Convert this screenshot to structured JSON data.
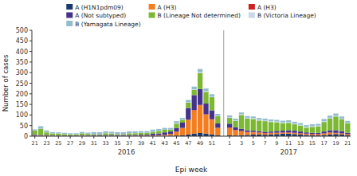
{
  "chart_data": {
    "type": "bar",
    "stacked": true,
    "grid": false,
    "xlabel": "Epi week",
    "ylabel": "Number of cases",
    "ylim": [
      0,
      500
    ],
    "yticks": [
      0,
      50,
      100,
      150,
      200,
      250,
      300,
      350,
      400,
      450,
      500
    ],
    "categories": [
      "21",
      null,
      "23",
      null,
      "25",
      null,
      "27",
      null,
      "29",
      null,
      "31",
      null,
      "33",
      null,
      "35",
      null,
      "37",
      null,
      "39",
      null,
      "41",
      null,
      "43",
      null,
      "45",
      null,
      "47",
      null,
      "49",
      null,
      "51",
      null,
      null,
      "1",
      null,
      "3",
      null,
      "5",
      null,
      "7",
      null,
      "9",
      null,
      "11",
      null,
      "13",
      null,
      "15",
      null,
      "17",
      null,
      "19",
      null,
      "21"
    ],
    "annotations": [
      {
        "text": "2016"
      },
      {
        "text": "2017"
      }
    ],
    "series": [
      {
        "name": "A (H1N1pdm09)",
        "color": "#1a3a6b",
        "values": [
          2,
          1,
          1,
          1,
          1,
          1,
          1,
          1,
          1,
          1,
          1,
          1,
          1,
          1,
          1,
          1,
          1,
          1,
          1,
          1,
          1,
          1,
          1,
          2,
          3,
          4,
          8,
          12,
          15,
          12,
          8,
          4,
          null,
          4,
          3,
          5,
          6,
          8,
          8,
          7,
          8,
          10,
          12,
          12,
          10,
          8,
          6,
          4,
          4,
          6,
          8,
          10,
          8,
          4
        ]
      },
      {
        "name": "A (H3)",
        "color": "#f47d20",
        "values": [
          3,
          2,
          2,
          1,
          1,
          1,
          1,
          1,
          2,
          1,
          1,
          1,
          1,
          1,
          1,
          1,
          1,
          1,
          2,
          2,
          3,
          4,
          5,
          8,
          18,
          35,
          70,
          110,
          130,
          90,
          70,
          35,
          null,
          35,
          25,
          18,
          12,
          10,
          8,
          6,
          6,
          5,
          4,
          4,
          4,
          4,
          4,
          4,
          4,
          6,
          8,
          4,
          4,
          4
        ]
      },
      {
        "name": "A (H3)",
        "color": "#cc2222",
        "values": [
          0,
          0,
          0,
          0,
          0,
          0,
          0,
          0,
          0,
          0,
          0,
          0,
          0,
          0,
          0,
          0,
          0,
          0,
          0,
          0,
          0,
          0,
          0,
          0,
          0,
          0,
          0,
          2,
          3,
          2,
          2,
          1,
          null,
          2,
          2,
          2,
          2,
          2,
          2,
          2,
          2,
          2,
          2,
          2,
          2,
          2,
          2,
          2,
          2,
          2,
          2,
          2,
          2,
          2
        ]
      },
      {
        "name": "A (Not subtyped)",
        "color": "#443388",
        "values": [
          3,
          3,
          3,
          3,
          2,
          2,
          2,
          2,
          3,
          3,
          4,
          4,
          4,
          4,
          4,
          4,
          4,
          4,
          4,
          4,
          8,
          8,
          12,
          12,
          18,
          25,
          55,
          70,
          75,
          50,
          42,
          20,
          null,
          18,
          12,
          10,
          8,
          6,
          6,
          6,
          6,
          8,
          8,
          10,
          10,
          8,
          6,
          6,
          6,
          8,
          10,
          12,
          10,
          6
        ]
      },
      {
        "name": "B (Lineage Not determined)",
        "color": "#7cb832",
        "values": [
          18,
          28,
          12,
          8,
          8,
          6,
          4,
          4,
          8,
          6,
          4,
          4,
          8,
          6,
          4,
          4,
          8,
          8,
          8,
          8,
          8,
          12,
          12,
          8,
          20,
          12,
          25,
          25,
          75,
          55,
          62,
          35,
          null,
          28,
          30,
          65,
          55,
          55,
          50,
          50,
          45,
          40,
          35,
          35,
          30,
          28,
          22,
          28,
          30,
          45,
          55,
          65,
          55,
          45
        ]
      },
      {
        "name": "B (Victoria Lineage)",
        "color": "#c8d8e8",
        "values": [
          1,
          1,
          1,
          1,
          1,
          1,
          1,
          1,
          1,
          1,
          1,
          1,
          1,
          1,
          1,
          1,
          1,
          1,
          1,
          1,
          1,
          1,
          1,
          1,
          2,
          2,
          3,
          3,
          4,
          4,
          4,
          2,
          null,
          3,
          3,
          4,
          4,
          4,
          4,
          4,
          4,
          4,
          4,
          4,
          4,
          4,
          4,
          4,
          4,
          4,
          4,
          4,
          4,
          3
        ]
      },
      {
        "name": "B (Yamagata Lineage)",
        "color": "#92bdcc",
        "values": [
          5,
          12,
          8,
          5,
          5,
          5,
          5,
          5,
          5,
          5,
          8,
          8,
          8,
          8,
          8,
          8,
          8,
          8,
          8,
          8,
          10,
          8,
          8,
          8,
          10,
          8,
          10,
          12,
          15,
          12,
          10,
          8,
          null,
          8,
          8,
          8,
          8,
          8,
          8,
          8,
          8,
          8,
          8,
          8,
          8,
          8,
          8,
          8,
          8,
          10,
          10,
          10,
          10,
          8
        ]
      }
    ]
  }
}
